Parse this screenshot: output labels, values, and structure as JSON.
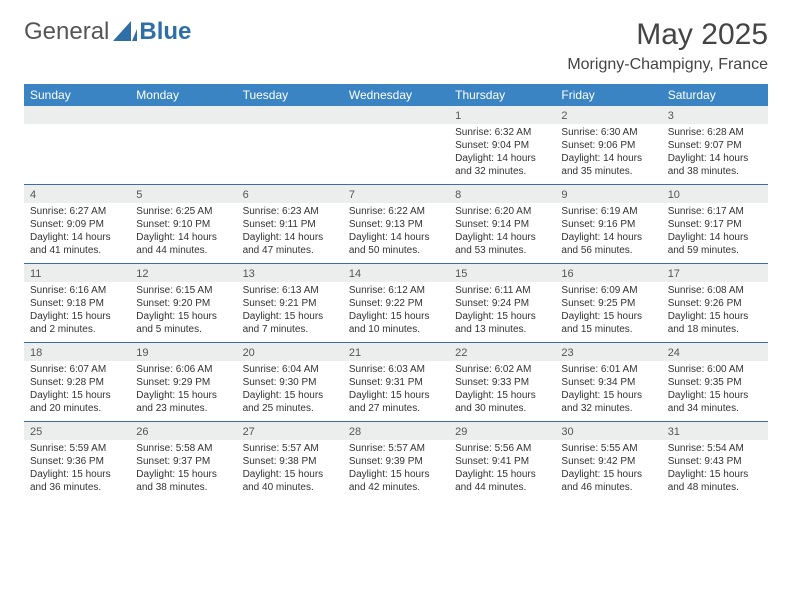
{
  "logo": {
    "part1": "General",
    "part2": "Blue"
  },
  "title": "May 2025",
  "location": "Morigny-Champigny, France",
  "colors": {
    "header_bg": "#3a84c4",
    "header_text": "#ffffff",
    "daynum_bg": "#eceeee",
    "rule": "#3a6ea5",
    "logo_blue": "#2f6fa8"
  },
  "daysOfWeek": [
    "Sunday",
    "Monday",
    "Tuesday",
    "Wednesday",
    "Thursday",
    "Friday",
    "Saturday"
  ],
  "weeks": [
    [
      null,
      null,
      null,
      null,
      {
        "n": "1",
        "sr": "Sunrise: 6:32 AM",
        "ss": "Sunset: 9:04 PM",
        "dl": "Daylight: 14 hours and 32 minutes."
      },
      {
        "n": "2",
        "sr": "Sunrise: 6:30 AM",
        "ss": "Sunset: 9:06 PM",
        "dl": "Daylight: 14 hours and 35 minutes."
      },
      {
        "n": "3",
        "sr": "Sunrise: 6:28 AM",
        "ss": "Sunset: 9:07 PM",
        "dl": "Daylight: 14 hours and 38 minutes."
      }
    ],
    [
      {
        "n": "4",
        "sr": "Sunrise: 6:27 AM",
        "ss": "Sunset: 9:09 PM",
        "dl": "Daylight: 14 hours and 41 minutes."
      },
      {
        "n": "5",
        "sr": "Sunrise: 6:25 AM",
        "ss": "Sunset: 9:10 PM",
        "dl": "Daylight: 14 hours and 44 minutes."
      },
      {
        "n": "6",
        "sr": "Sunrise: 6:23 AM",
        "ss": "Sunset: 9:11 PM",
        "dl": "Daylight: 14 hours and 47 minutes."
      },
      {
        "n": "7",
        "sr": "Sunrise: 6:22 AM",
        "ss": "Sunset: 9:13 PM",
        "dl": "Daylight: 14 hours and 50 minutes."
      },
      {
        "n": "8",
        "sr": "Sunrise: 6:20 AM",
        "ss": "Sunset: 9:14 PM",
        "dl": "Daylight: 14 hours and 53 minutes."
      },
      {
        "n": "9",
        "sr": "Sunrise: 6:19 AM",
        "ss": "Sunset: 9:16 PM",
        "dl": "Daylight: 14 hours and 56 minutes."
      },
      {
        "n": "10",
        "sr": "Sunrise: 6:17 AM",
        "ss": "Sunset: 9:17 PM",
        "dl": "Daylight: 14 hours and 59 minutes."
      }
    ],
    [
      {
        "n": "11",
        "sr": "Sunrise: 6:16 AM",
        "ss": "Sunset: 9:18 PM",
        "dl": "Daylight: 15 hours and 2 minutes."
      },
      {
        "n": "12",
        "sr": "Sunrise: 6:15 AM",
        "ss": "Sunset: 9:20 PM",
        "dl": "Daylight: 15 hours and 5 minutes."
      },
      {
        "n": "13",
        "sr": "Sunrise: 6:13 AM",
        "ss": "Sunset: 9:21 PM",
        "dl": "Daylight: 15 hours and 7 minutes."
      },
      {
        "n": "14",
        "sr": "Sunrise: 6:12 AM",
        "ss": "Sunset: 9:22 PM",
        "dl": "Daylight: 15 hours and 10 minutes."
      },
      {
        "n": "15",
        "sr": "Sunrise: 6:11 AM",
        "ss": "Sunset: 9:24 PM",
        "dl": "Daylight: 15 hours and 13 minutes."
      },
      {
        "n": "16",
        "sr": "Sunrise: 6:09 AM",
        "ss": "Sunset: 9:25 PM",
        "dl": "Daylight: 15 hours and 15 minutes."
      },
      {
        "n": "17",
        "sr": "Sunrise: 6:08 AM",
        "ss": "Sunset: 9:26 PM",
        "dl": "Daylight: 15 hours and 18 minutes."
      }
    ],
    [
      {
        "n": "18",
        "sr": "Sunrise: 6:07 AM",
        "ss": "Sunset: 9:28 PM",
        "dl": "Daylight: 15 hours and 20 minutes."
      },
      {
        "n": "19",
        "sr": "Sunrise: 6:06 AM",
        "ss": "Sunset: 9:29 PM",
        "dl": "Daylight: 15 hours and 23 minutes."
      },
      {
        "n": "20",
        "sr": "Sunrise: 6:04 AM",
        "ss": "Sunset: 9:30 PM",
        "dl": "Daylight: 15 hours and 25 minutes."
      },
      {
        "n": "21",
        "sr": "Sunrise: 6:03 AM",
        "ss": "Sunset: 9:31 PM",
        "dl": "Daylight: 15 hours and 27 minutes."
      },
      {
        "n": "22",
        "sr": "Sunrise: 6:02 AM",
        "ss": "Sunset: 9:33 PM",
        "dl": "Daylight: 15 hours and 30 minutes."
      },
      {
        "n": "23",
        "sr": "Sunrise: 6:01 AM",
        "ss": "Sunset: 9:34 PM",
        "dl": "Daylight: 15 hours and 32 minutes."
      },
      {
        "n": "24",
        "sr": "Sunrise: 6:00 AM",
        "ss": "Sunset: 9:35 PM",
        "dl": "Daylight: 15 hours and 34 minutes."
      }
    ],
    [
      {
        "n": "25",
        "sr": "Sunrise: 5:59 AM",
        "ss": "Sunset: 9:36 PM",
        "dl": "Daylight: 15 hours and 36 minutes."
      },
      {
        "n": "26",
        "sr": "Sunrise: 5:58 AM",
        "ss": "Sunset: 9:37 PM",
        "dl": "Daylight: 15 hours and 38 minutes."
      },
      {
        "n": "27",
        "sr": "Sunrise: 5:57 AM",
        "ss": "Sunset: 9:38 PM",
        "dl": "Daylight: 15 hours and 40 minutes."
      },
      {
        "n": "28",
        "sr": "Sunrise: 5:57 AM",
        "ss": "Sunset: 9:39 PM",
        "dl": "Daylight: 15 hours and 42 minutes."
      },
      {
        "n": "29",
        "sr": "Sunrise: 5:56 AM",
        "ss": "Sunset: 9:41 PM",
        "dl": "Daylight: 15 hours and 44 minutes."
      },
      {
        "n": "30",
        "sr": "Sunrise: 5:55 AM",
        "ss": "Sunset: 9:42 PM",
        "dl": "Daylight: 15 hours and 46 minutes."
      },
      {
        "n": "31",
        "sr": "Sunrise: 5:54 AM",
        "ss": "Sunset: 9:43 PM",
        "dl": "Daylight: 15 hours and 48 minutes."
      }
    ]
  ]
}
